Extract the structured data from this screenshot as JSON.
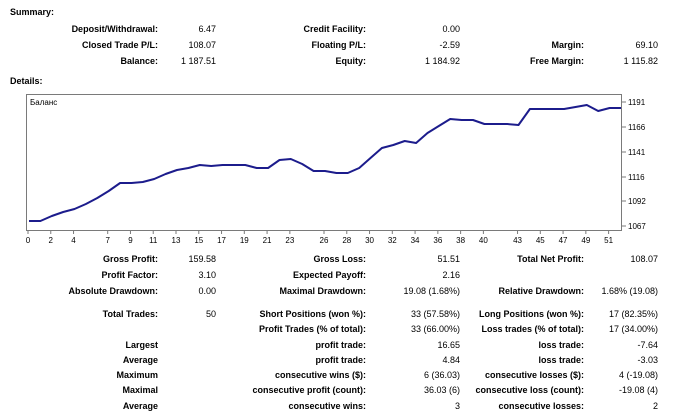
{
  "summary": {
    "title": "Summary:",
    "rows": [
      [
        [
          "Deposit/Withdrawal:",
          "6.47"
        ],
        [
          "Credit Facility:",
          "0.00"
        ],
        [
          "",
          ""
        ]
      ],
      [
        [
          "Closed Trade P/L:",
          "108.07"
        ],
        [
          "Floating P/L:",
          "-2.59"
        ],
        [
          "Margin:",
          "69.10"
        ]
      ],
      [
        [
          "Balance:",
          "1 187.51"
        ],
        [
          "Equity:",
          "1 184.92"
        ],
        [
          "Free Margin:",
          "1 115.82"
        ]
      ]
    ]
  },
  "details": {
    "title": "Details:",
    "rows": [
      [
        [
          "Gross Profit:",
          "159.58"
        ],
        [
          "Gross Loss:",
          "51.51"
        ],
        [
          "Total Net Profit:",
          "108.07"
        ]
      ],
      [
        [
          "Profit Factor:",
          "3.10"
        ],
        [
          "Expected Payoff:",
          "2.16"
        ],
        [
          "",
          ""
        ]
      ],
      [
        [
          "Absolute Drawdown:",
          "0.00"
        ],
        [
          "Maximal Drawdown:",
          "19.08 (1.68%)"
        ],
        [
          "Relative Drawdown:",
          "1.68% (19.08)"
        ]
      ],
      [
        [
          "Total Trades:",
          "50"
        ],
        [
          "Short Positions (won %):",
          "33 (57.58%)"
        ],
        [
          "Long Positions (won %):",
          "17 (82.35%)"
        ]
      ],
      [
        [
          "",
          ""
        ],
        [
          "Profit Trades (% of total):",
          "33 (66.00%)"
        ],
        [
          "Loss trades (% of total):",
          "17 (34.00%)"
        ]
      ],
      [
        [
          "Largest",
          ""
        ],
        [
          "profit trade:",
          "16.65"
        ],
        [
          "loss trade:",
          "-7.64"
        ]
      ],
      [
        [
          "Average",
          ""
        ],
        [
          "profit trade:",
          "4.84"
        ],
        [
          "loss trade:",
          "-3.03"
        ]
      ],
      [
        [
          "Maximum",
          ""
        ],
        [
          "consecutive wins ($):",
          "6 (36.03)"
        ],
        [
          "consecutive losses ($):",
          "4 (-19.08)"
        ]
      ],
      [
        [
          "Maximal",
          ""
        ],
        [
          "consecutive profit (count):",
          "36.03 (6)"
        ],
        [
          "consecutive loss (count):",
          "-19.08 (4)"
        ]
      ],
      [
        [
          "Average",
          ""
        ],
        [
          "consecutive wins:",
          "3"
        ],
        [
          "consecutive losses:",
          "2"
        ]
      ]
    ]
  },
  "chart_data": {
    "type": "line",
    "legend": "Баланс",
    "line_color": "#1c1c8c",
    "xlim": [
      0,
      52
    ],
    "ylim": [
      1064,
      1197
    ],
    "x_ticks": [
      "0",
      "2",
      "4",
      "7",
      "9",
      "11",
      "13",
      "15",
      "17",
      "19",
      "21",
      "23",
      "26",
      "28",
      "30",
      "32",
      "34",
      "36",
      "38",
      "40",
      "43",
      "45",
      "47",
      "49",
      "51"
    ],
    "y_ticks": [
      "1191",
      "1166",
      "1141",
      "1116",
      "1092",
      "1067"
    ],
    "series": [
      {
        "x": [
          0,
          1,
          2,
          3,
          4,
          5,
          6,
          7,
          8,
          9,
          10,
          11,
          12,
          13,
          14,
          15,
          16,
          17,
          18,
          19,
          20,
          21,
          22,
          23,
          24,
          25,
          26,
          27,
          28,
          29,
          30,
          31,
          32,
          33,
          34,
          35,
          36,
          37,
          38,
          39,
          40,
          41,
          42,
          43,
          44,
          45,
          46,
          47,
          48,
          49,
          50,
          51,
          52
        ],
        "y": [
          1073,
          1073,
          1078,
          1082,
          1085,
          1090,
          1096,
          1103,
          1111,
          1111,
          1112,
          1115,
          1120,
          1124,
          1126,
          1129,
          1128,
          1129,
          1129,
          1129,
          1126,
          1126,
          1134,
          1135,
          1130,
          1123,
          1123,
          1121,
          1121,
          1126,
          1136,
          1146,
          1149,
          1153,
          1151,
          1161,
          1168,
          1175,
          1174,
          1174,
          1170,
          1170,
          1170,
          1169,
          1185,
          1185,
          1185,
          1185,
          1187,
          1189,
          1183,
          1186,
          1186
        ]
      }
    ]
  }
}
